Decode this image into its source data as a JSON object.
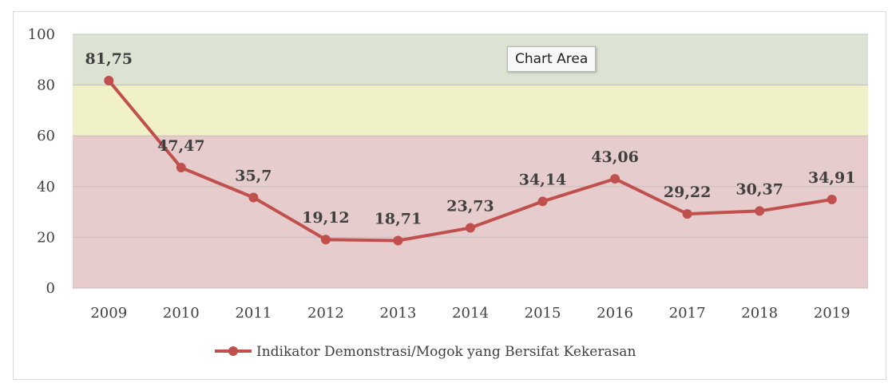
{
  "chart_data": {
    "type": "line",
    "categories": [
      "2009",
      "2010",
      "2011",
      "2012",
      "2013",
      "2014",
      "2015",
      "2016",
      "2017",
      "2018",
      "2019"
    ],
    "series": [
      {
        "name": "Indikator Demonstrasi/Mogok yang Bersifat Kekerasan",
        "values": [
          81.75,
          47.47,
          35.7,
          19.12,
          18.71,
          23.73,
          34.14,
          43.06,
          29.22,
          30.37,
          34.91
        ],
        "labels": [
          "81,75",
          "47,47",
          "35,7",
          "19,12",
          "18,71",
          "23,73",
          "34,14",
          "43,06",
          "29,22",
          "30,37",
          "34,91"
        ],
        "color": "#c0504d"
      }
    ],
    "ylim": [
      0,
      100
    ],
    "yticks": [
      0,
      20,
      40,
      60,
      80,
      100
    ],
    "bands": [
      {
        "from": 0,
        "to": 60,
        "color": "#e6cccc"
      },
      {
        "from": 60,
        "to": 80,
        "color": "#f1f1c8"
      },
      {
        "from": 80,
        "to": 100,
        "color": "#dce3d3"
      }
    ],
    "grid": true,
    "legend": "bottom-center"
  },
  "tooltip": "Chart Area"
}
